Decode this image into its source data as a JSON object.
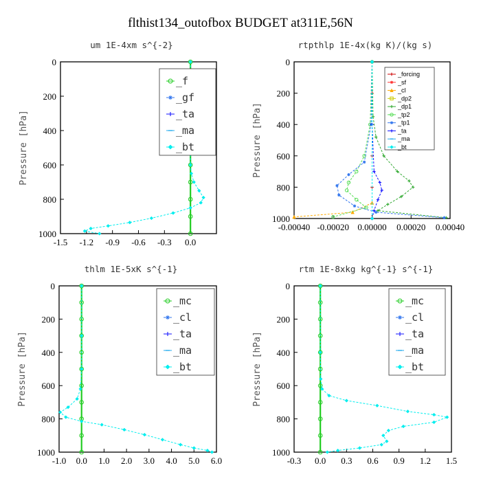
{
  "title": "flthist134_outofbox  BUDGET at311E,56N",
  "chart_data": [
    {
      "type": "line",
      "title": "um  1E-4xm s^{-2}",
      "ylabel": "Pressure [hPa]",
      "xlim": [
        -1.5,
        0.3
      ],
      "xticks": [
        "-1.5",
        "-1.2",
        "-0.9",
        "-0.6",
        "-0.3",
        "0.0"
      ],
      "xtick_values": [
        -1.5,
        -1.2,
        -0.9,
        -0.6,
        -0.3,
        0.0
      ],
      "ylim": [
        1000,
        0
      ],
      "yticks": [
        "0",
        "200",
        "400",
        "600",
        "800",
        "1000"
      ],
      "legend_position": "top-right",
      "series": [
        {
          "name": "_f",
          "color": "#22cc22",
          "marker": "circle",
          "points": [
            [
              0.0,
              0
            ],
            [
              0.0,
              100
            ],
            [
              0.0,
              200
            ],
            [
              0.0,
              300
            ],
            [
              0.0,
              400
            ],
            [
              0.0,
              500
            ],
            [
              0.0,
              600
            ],
            [
              0.0,
              700
            ],
            [
              0.0,
              800
            ],
            [
              0.0,
              900
            ],
            [
              0.0,
              1000
            ]
          ]
        },
        {
          "name": "_gf",
          "color": "#3377ee",
          "marker": "star",
          "points": []
        },
        {
          "name": "_ta",
          "color": "#1111ff",
          "marker": "plus",
          "points": []
        },
        {
          "name": "_ma",
          "color": "#22aaee",
          "marker": "dash",
          "points": []
        },
        {
          "name": "_bt",
          "color": "#00eeee",
          "marker": "diamond",
          "points": [
            [
              0.0,
              0
            ],
            [
              0.0,
              200
            ],
            [
              0.0,
              400
            ],
            [
              0.0,
              600
            ],
            [
              0.01,
              650
            ],
            [
              0.04,
              700
            ],
            [
              0.1,
              750
            ],
            [
              0.15,
              790
            ],
            [
              0.12,
              820
            ],
            [
              0.0,
              850
            ],
            [
              -0.2,
              880
            ],
            [
              -0.45,
              910
            ],
            [
              -0.7,
              935
            ],
            [
              -0.95,
              955
            ],
            [
              -1.15,
              970
            ],
            [
              -1.22,
              985
            ],
            [
              -1.05,
              1000
            ]
          ]
        }
      ]
    },
    {
      "type": "line",
      "title": "rtpthlp  1E-4x(kg K)/(kg s)",
      "ylabel": "Pressure [hPa]",
      "xlim": [
        -0.0004,
        0.0004
      ],
      "xticks": [
        "-0.00040",
        "-0.00020",
        "0.00000",
        "0.00020",
        "0.00040"
      ],
      "xtick_values": [
        -0.0004,
        -0.0002,
        0.0,
        0.0002,
        0.0004
      ],
      "ylim": [
        1000,
        0
      ],
      "yticks": [
        "0",
        "200",
        "400",
        "600",
        "800",
        "1000"
      ],
      "legend_position": "top-right",
      "series": [
        {
          "name": "_forcing",
          "color": "#cc0000",
          "marker": "plus",
          "points": [
            [
              0.0,
              0
            ],
            [
              0.0,
              200
            ],
            [
              0.0,
              400
            ],
            [
              0.0,
              600
            ],
            [
              0.0,
              800
            ],
            [
              0.0,
              1000
            ]
          ]
        },
        {
          "name": "_sf",
          "color": "#ff3333",
          "marker": "star",
          "points": [
            [
              0.0,
              0
            ],
            [
              0.0,
              1000
            ]
          ]
        },
        {
          "name": "_cl",
          "color": "#ffaa00",
          "marker": "triangle",
          "points": [
            [
              0.0,
              900
            ],
            [
              -0.0001,
              960
            ],
            [
              -0.0004,
              990
            ]
          ]
        },
        {
          "name": "_dp2",
          "color": "#cccc00",
          "marker": "square",
          "points": []
        },
        {
          "name": "_dp1",
          "color": "#33aa33",
          "marker": "plus",
          "points": [
            [
              0.0,
              0
            ],
            [
              5e-06,
              350
            ],
            [
              2e-05,
              480
            ],
            [
              6e-05,
              600
            ],
            [
              0.00013,
              700
            ],
            [
              0.00019,
              760
            ],
            [
              0.00021,
              800
            ],
            [
              0.00015,
              860
            ],
            [
              8e-05,
              910
            ],
            [
              3e-05,
              950
            ],
            [
              0.00038,
              995
            ]
          ]
        },
        {
          "name": "_tp2",
          "color": "#55dd55",
          "marker": "circle",
          "points": [
            [
              0.0,
              0
            ],
            [
              -1e-05,
              400
            ],
            [
              -4e-05,
              600
            ],
            [
              -8e-05,
              700
            ],
            [
              -0.00012,
              770
            ],
            [
              -0.00013,
              820
            ],
            [
              -8e-05,
              880
            ],
            [
              -3e-05,
              930
            ],
            [
              -0.0002,
              990
            ]
          ]
        },
        {
          "name": "_tp1",
          "color": "#3377ee",
          "marker": "star",
          "points": [
            [
              0.0,
              0
            ],
            [
              -5e-06,
              400
            ],
            [
              -4e-05,
              640
            ],
            [
              -0.00012,
              720
            ],
            [
              -0.00018,
              790
            ],
            [
              -0.00017,
              850
            ],
            [
              -9e-05,
              920
            ],
            [
              2e-05,
              960
            ],
            [
              0.00037,
              995
            ]
          ]
        },
        {
          "name": "_ta",
          "color": "#1111ff",
          "marker": "plus",
          "points": [
            [
              0.0,
              0
            ],
            [
              0.0,
              400
            ],
            [
              1e-05,
              700
            ],
            [
              4e-05,
              770
            ],
            [
              5e-05,
              820
            ],
            [
              3e-05,
              880
            ],
            [
              1e-05,
              950
            ],
            [
              0.0,
              1000
            ]
          ]
        },
        {
          "name": "_ma",
          "color": "#22aaee",
          "marker": "dash",
          "points": [
            [
              0.0,
              0
            ],
            [
              0.0,
              1000
            ]
          ]
        },
        {
          "name": "_bt",
          "color": "#00eeee",
          "marker": "diamond",
          "points": [
            [
              0.0,
              0
            ],
            [
              0.0,
              1000
            ]
          ]
        }
      ]
    },
    {
      "type": "line",
      "title": "thlm  1E-5xK s^{-1}",
      "ylabel": "Pressure [hPa]",
      "xlim": [
        -1.0,
        6.0
      ],
      "xticks": [
        "-1.0",
        "0.0",
        "1.0",
        "2.0",
        "3.0",
        "4.0",
        "5.0",
        "6.0"
      ],
      "xtick_values": [
        -1.0,
        0.0,
        1.0,
        2.0,
        3.0,
        4.0,
        5.0,
        6.0
      ],
      "ylim": [
        1000,
        0
      ],
      "yticks": [
        "0",
        "200",
        "400",
        "600",
        "800",
        "1000"
      ],
      "legend_position": "top-right",
      "series": [
        {
          "name": "_mc",
          "color": "#22cc22",
          "marker": "circle",
          "points": [
            [
              0.0,
              0
            ],
            [
              0.0,
              100
            ],
            [
              0.0,
              200
            ],
            [
              0.0,
              300
            ],
            [
              0.0,
              400
            ],
            [
              0.0,
              500
            ],
            [
              0.0,
              600
            ],
            [
              0.0,
              700
            ],
            [
              0.0,
              800
            ],
            [
              0.0,
              900
            ],
            [
              0.0,
              1000
            ]
          ]
        },
        {
          "name": "_cl",
          "color": "#3377ee",
          "marker": "star",
          "points": []
        },
        {
          "name": "_ta",
          "color": "#1111ff",
          "marker": "plus",
          "points": []
        },
        {
          "name": "_ma",
          "color": "#22aaee",
          "marker": "dash",
          "points": []
        },
        {
          "name": "_bt",
          "color": "#00eeee",
          "marker": "diamond",
          "points": [
            [
              0.0,
              0
            ],
            [
              0.0,
              300
            ],
            [
              0.0,
              500
            ],
            [
              -0.05,
              620
            ],
            [
              -0.2,
              680
            ],
            [
              -0.6,
              730
            ],
            [
              -0.95,
              760
            ],
            [
              -0.7,
              790
            ],
            [
              0.0,
              815
            ],
            [
              0.9,
              835
            ],
            [
              1.9,
              865
            ],
            [
              2.8,
              895
            ],
            [
              3.6,
              925
            ],
            [
              4.4,
              955
            ],
            [
              5.0,
              975
            ],
            [
              5.6,
              990
            ],
            [
              5.8,
              1000
            ]
          ]
        }
      ]
    },
    {
      "type": "line",
      "title": "rtm  1E-8xkg kg^{-1} s^{-1}",
      "ylabel": "Pressure [hPa]",
      "xlim": [
        -0.3,
        1.5
      ],
      "xticks": [
        "-0.3",
        "0.0",
        "0.3",
        "0.6",
        "0.9",
        "1.2",
        "1.5"
      ],
      "xtick_values": [
        -0.3,
        0.0,
        0.3,
        0.6,
        0.9,
        1.2,
        1.5
      ],
      "ylim": [
        1000,
        0
      ],
      "yticks": [
        "0",
        "200",
        "400",
        "600",
        "800",
        "1000"
      ],
      "legend_position": "top-right",
      "series": [
        {
          "name": "_mc",
          "color": "#22cc22",
          "marker": "circle",
          "points": [
            [
              0.0,
              0
            ],
            [
              0.0,
              100
            ],
            [
              0.0,
              200
            ],
            [
              0.0,
              300
            ],
            [
              0.0,
              400
            ],
            [
              0.0,
              500
            ],
            [
              0.0,
              600
            ],
            [
              0.0,
              700
            ],
            [
              0.0,
              800
            ],
            [
              0.0,
              900
            ],
            [
              0.0,
              1000
            ]
          ]
        },
        {
          "name": "_cl",
          "color": "#3377ee",
          "marker": "star",
          "points": []
        },
        {
          "name": "_ta",
          "color": "#1111ff",
          "marker": "plus",
          "points": []
        },
        {
          "name": "_ma",
          "color": "#22aaee",
          "marker": "dash",
          "points": []
        },
        {
          "name": "_bt",
          "color": "#00eeee",
          "marker": "diamond",
          "points": [
            [
              0.0,
              0
            ],
            [
              0.0,
              400
            ],
            [
              0.005,
              560
            ],
            [
              0.02,
              620
            ],
            [
              0.1,
              660
            ],
            [
              0.3,
              690
            ],
            [
              0.65,
              720
            ],
            [
              1.0,
              755
            ],
            [
              1.3,
              775
            ],
            [
              1.45,
              790
            ],
            [
              1.3,
              820
            ],
            [
              0.95,
              845
            ],
            [
              0.78,
              870
            ],
            [
              0.72,
              900
            ],
            [
              0.76,
              935
            ],
            [
              0.7,
              955
            ],
            [
              0.45,
              975
            ],
            [
              0.2,
              990
            ],
            [
              0.08,
              1000
            ]
          ]
        }
      ]
    }
  ]
}
